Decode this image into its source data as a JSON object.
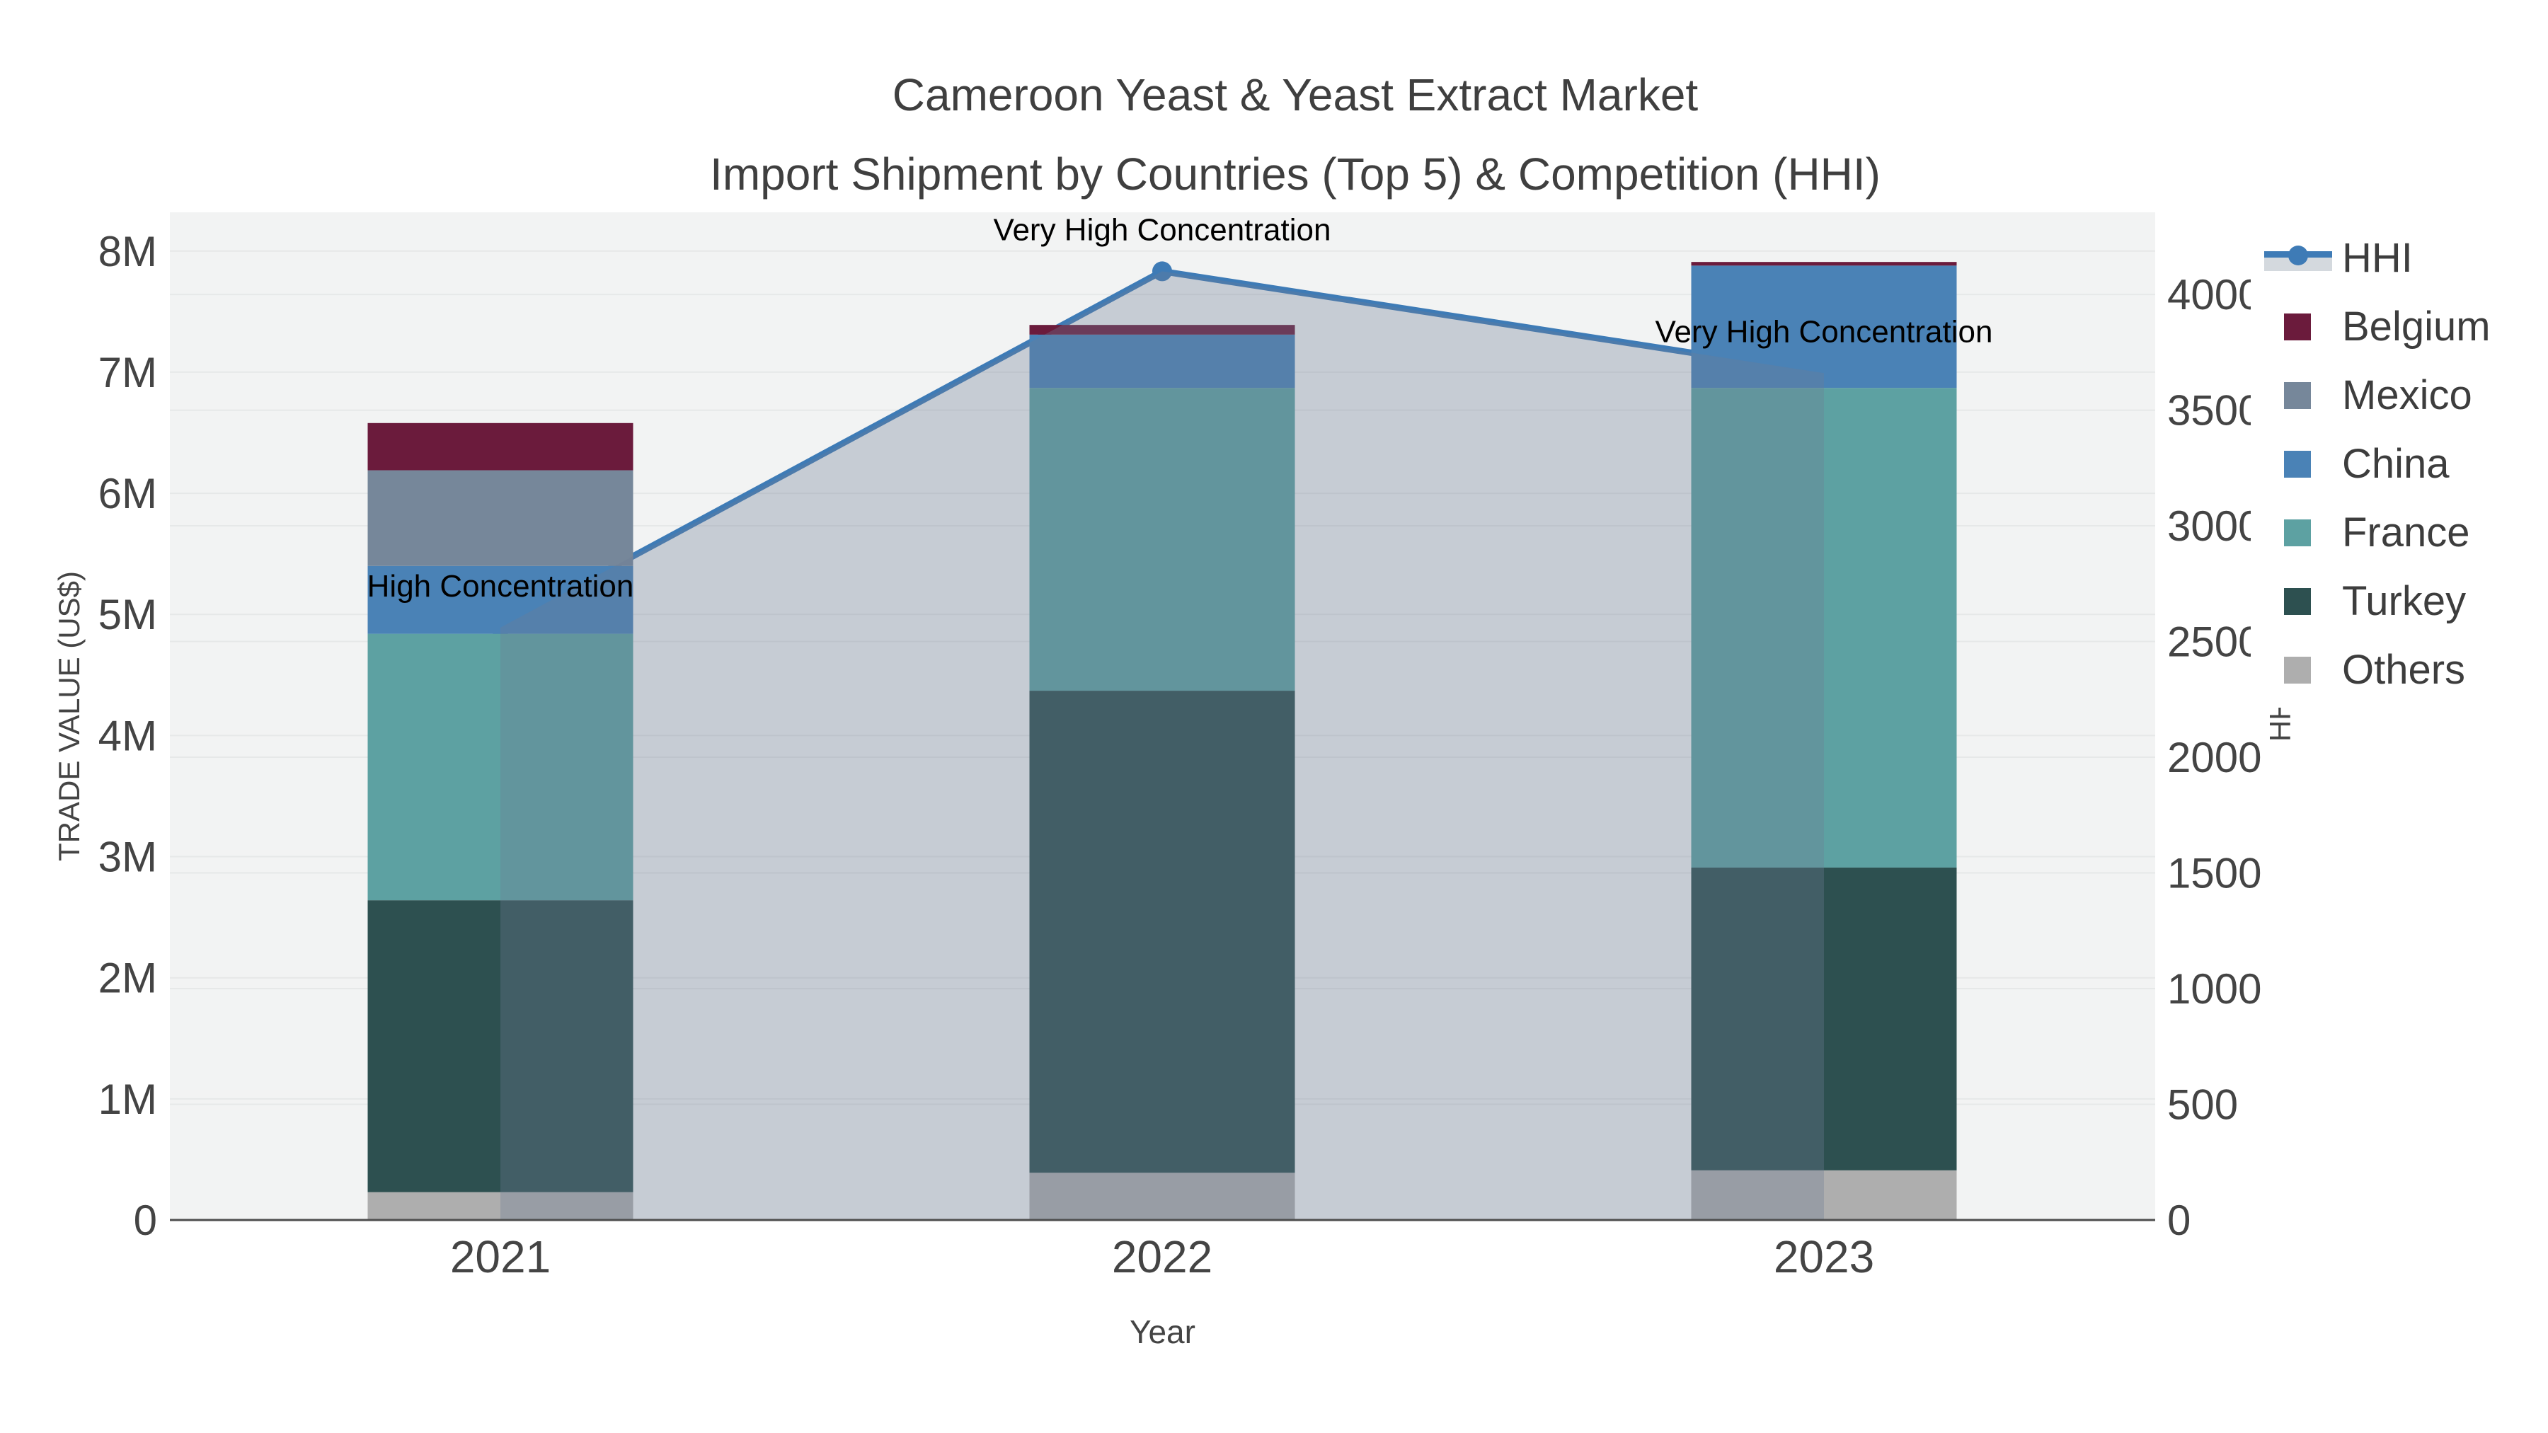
{
  "title": {
    "line1": "Cameroon Yeast & Yeast Extract Market",
    "line2": "Import Shipment by Countries (Top 5) & Competition (HHI)"
  },
  "chart_data": {
    "type": "bar+line",
    "title": "Cameroon Yeast & Yeast Extract Market Import Shipment by Countries (Top 5) & Competition (HHI)",
    "categories": [
      "2021",
      "2022",
      "2023"
    ],
    "xlabel": "Year",
    "ylabel": "TRADE VALUE (US$)",
    "y2label": "HHI",
    "ylim": [
      0,
      8320000
    ],
    "y2lim": [
      0,
      4355
    ],
    "grid": true,
    "legend_position": "right",
    "ytick_values": [
      0,
      1000000,
      2000000,
      3000000,
      4000000,
      5000000,
      6000000,
      7000000,
      8000000
    ],
    "ytick_labels": [
      "0",
      "1M",
      "2M",
      "3M",
      "4M",
      "5M",
      "6M",
      "7M",
      "8M"
    ],
    "y2tick_values": [
      0,
      500,
      1000,
      1500,
      2000,
      2500,
      3000,
      3500,
      4000
    ],
    "y2tick_labels": [
      "0",
      "500",
      "1000",
      "1500",
      "2000",
      "2500",
      "3000",
      "3500",
      "4000"
    ],
    "series": [
      {
        "name": "Others",
        "color": "#aeaeae",
        "values": [
          230000,
          390000,
          410000
        ]
      },
      {
        "name": "Turkey",
        "color": "#2d5050",
        "values": [
          2410000,
          3980000,
          2500000
        ]
      },
      {
        "name": "France",
        "color": "#5da1a2",
        "values": [
          2200000,
          2500000,
          3960000
        ]
      },
      {
        "name": "China",
        "color": "#4a82b6",
        "values": [
          560000,
          440000,
          1010000
        ]
      },
      {
        "name": "Mexico",
        "color": "#76879a",
        "values": [
          790000,
          0,
          0
        ]
      },
      {
        "name": "Belgium",
        "color": "#6b1b3c",
        "values": [
          390000,
          80000,
          30000
        ]
      }
    ],
    "hhi_line": {
      "name": "HHI",
      "values": [
        2560,
        4100,
        3660
      ],
      "line_color": "#3e7bb6",
      "area_color": "rgba(108,124,148,0.33)"
    },
    "annotations": [
      {
        "category": "2021",
        "text": "High Concentration"
      },
      {
        "category": "2022",
        "text": "Very High Concentration"
      },
      {
        "category": "2023",
        "text": "Very High Concentration"
      }
    ],
    "legend_entries": [
      "HHI",
      "Belgium",
      "Mexico",
      "China",
      "France",
      "Turkey",
      "Others"
    ]
  },
  "colors": {
    "plot_bg": "#f2f3f3",
    "grid": "#e6e8e8",
    "axis_line": "#4d4d4d",
    "tick_text": "#444444",
    "title_text": "#3f3f3f",
    "annotation_text": "#000000",
    "legend_text": "#3d3d3d"
  }
}
